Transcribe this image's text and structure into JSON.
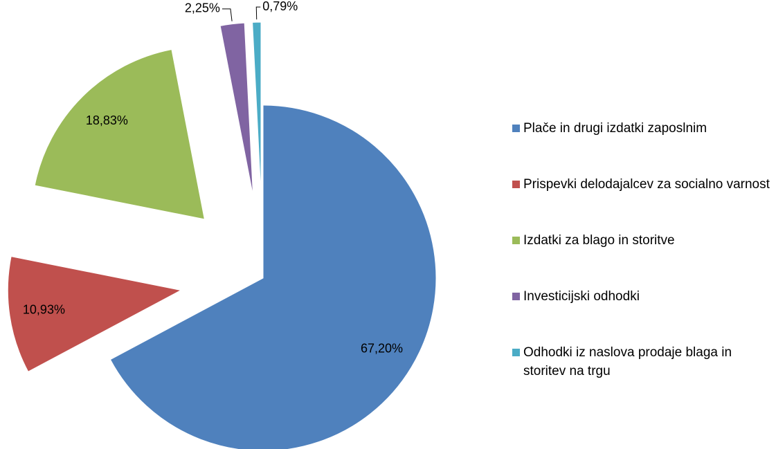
{
  "chart_data": {
    "type": "pie",
    "categories": [
      "Plače in drugi izdatki zaposlnim",
      "Prispevki delodajalcev za socialno varnost",
      "Izdatki za blago in storitve",
      "Investicijski odhodki",
      "Odhodki iz naslova prodaje blaga in storitev na trgu"
    ],
    "values": [
      67.2,
      10.93,
      18.83,
      2.25,
      0.79
    ],
    "value_labels": [
      "67,20%",
      "10,93%",
      "18,83%",
      "2,25%",
      "0,79%"
    ],
    "colors": [
      "#4f81bd",
      "#c0504d",
      "#9bbb59",
      "#8064a2",
      "#4bacc6"
    ],
    "exploded": [
      false,
      true,
      true,
      true,
      true
    ],
    "legend": "right"
  }
}
